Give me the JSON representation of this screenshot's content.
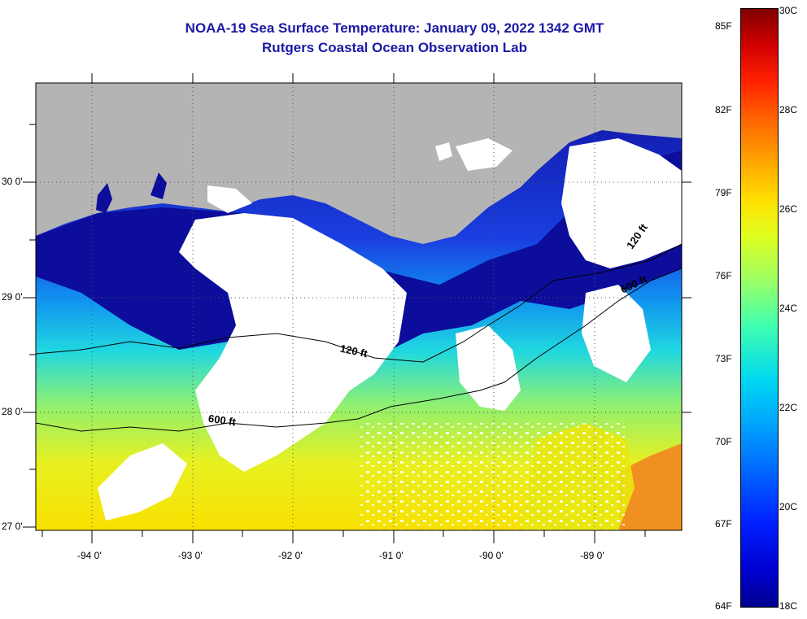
{
  "title": {
    "line1": "NOAA-19 Sea Surface Temperature:  January 09, 2022 1342 GMT",
    "line2": "Rutgers Coastal Ocean Observation Lab"
  },
  "axes": {
    "latitude_labels": [
      "30 0'",
      "29 0'",
      "28 0'",
      "27 0'"
    ],
    "longitude_labels": [
      "-94 0'",
      "-93 0'",
      "-92 0'",
      "-91 0'",
      "-90 0'",
      "-89 0'"
    ]
  },
  "contours": [
    {
      "label": "120 ft",
      "depth_ft": 120
    },
    {
      "label": "600 ft",
      "depth_ft": 600
    }
  ],
  "colorbar": {
    "fahrenheit_labels": [
      "85F",
      "82F",
      "79F",
      "76F",
      "73F",
      "70F",
      "67F",
      "64F"
    ],
    "celsius_labels": [
      "30C",
      "28C",
      "26C",
      "24C",
      "22C",
      "20C",
      "18C"
    ],
    "range_c": [
      18,
      30
    ],
    "range_f": [
      64,
      86
    ],
    "colors": {
      "cold": "#000090",
      "cool": "#0060ff",
      "mid": "#00d8f0",
      "warm": "#e0ff20",
      "hot": "#ff6000",
      "max": "#800000"
    }
  },
  "map_colors": {
    "land": "#b4b4b4",
    "cloud_mask": "#ffffff",
    "coastal_cold_water": "#0a0a96"
  }
}
